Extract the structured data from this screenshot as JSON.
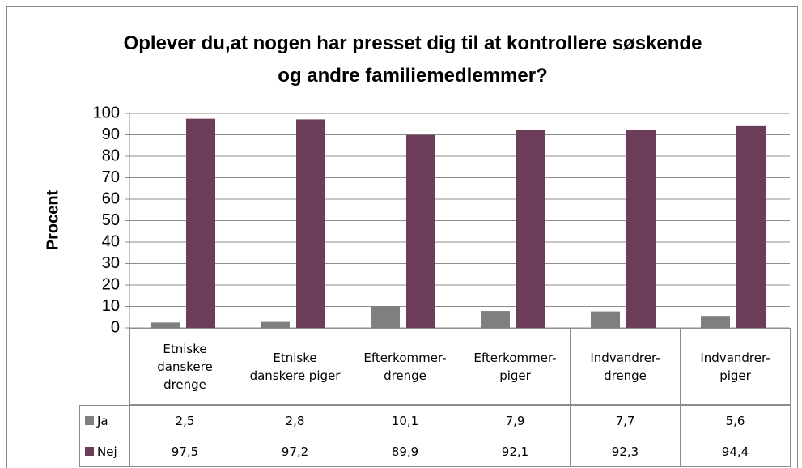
{
  "chart_data": {
    "type": "bar",
    "title": "Oplever du,at nogen har presset dig til at kontrollere søskende og andre familiemedlemmer?",
    "ylabel": "Procent",
    "categories": [
      "Etniske danskere drenge",
      "Etniske danskere piger",
      "Efterkommer-drenge",
      "Efterkommer-piger",
      "Indvandrer-drenge",
      "Indvandrer-piger"
    ],
    "series": [
      {
        "name": "Ja",
        "color": "#7f7f7f",
        "values": [
          2.5,
          2.8,
          10.1,
          7.9,
          7.7,
          5.6
        ],
        "value_labels": [
          "2,5",
          "2,8",
          "10,1",
          "7,9",
          "7,7",
          "5,6"
        ]
      },
      {
        "name": "Nej",
        "color": "#6c3d59",
        "values": [
          97.5,
          97.2,
          89.9,
          92.1,
          92.3,
          94.4
        ],
        "value_labels": [
          "97,5",
          "97,2",
          "89,9",
          "92,1",
          "92,3",
          "94,4"
        ]
      }
    ],
    "ylim": [
      0,
      100
    ],
    "yticks": [
      0,
      10,
      20,
      30,
      40,
      50,
      60,
      70,
      80,
      90,
      100
    ],
    "grid": true
  }
}
